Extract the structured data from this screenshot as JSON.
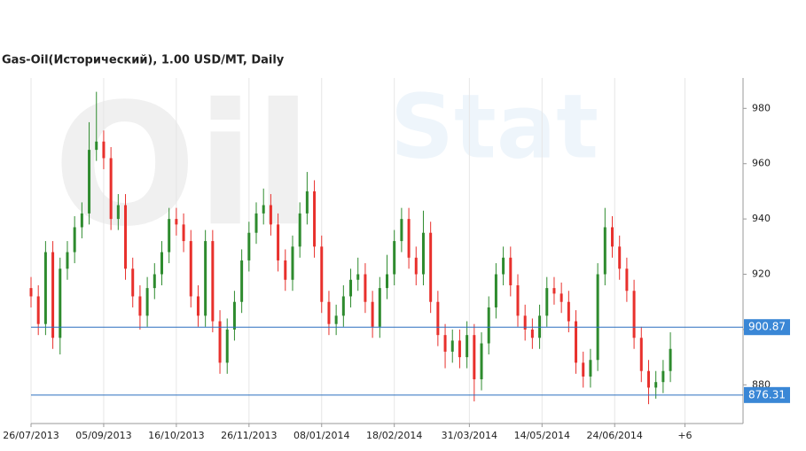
{
  "chart_data": {
    "type": "candlestick",
    "title": "Gas-Oil(Исторический), 1.00 USD/MT, Daily",
    "watermark": [
      "Oil",
      "Stat"
    ],
    "x": [
      0,
      3,
      6,
      9,
      12,
      15,
      18,
      21,
      24,
      27,
      30,
      33,
      36,
      39,
      42,
      45,
      48,
      51,
      54,
      57,
      60,
      63,
      66,
      69,
      72,
      75,
      78,
      81,
      84,
      87,
      90,
      93,
      96,
      99,
      102,
      105,
      108,
      111,
      114,
      117,
      120,
      123,
      126,
      129,
      132,
      135,
      138,
      141,
      144,
      147,
      150,
      153,
      156,
      159,
      162,
      165,
      168,
      171,
      174,
      177,
      180,
      183,
      186,
      189,
      192,
      195,
      198,
      201,
      204,
      207,
      210,
      213,
      216,
      219,
      222,
      225,
      228,
      231,
      234,
      237,
      240,
      243,
      246,
      249,
      252,
      255,
      258,
      261,
      264
    ],
    "open": [
      915,
      912,
      902,
      928,
      897,
      922,
      928,
      937,
      942,
      965,
      968,
      962,
      940,
      945,
      922,
      912,
      905,
      915,
      920,
      928,
      940,
      938,
      932,
      912,
      905,
      932,
      903,
      888,
      900,
      910,
      925,
      935,
      942,
      945,
      938,
      925,
      918,
      930,
      942,
      950,
      930,
      910,
      902,
      905,
      912,
      918,
      920,
      910,
      901,
      915,
      920,
      932,
      940,
      926,
      920,
      935,
      910,
      898,
      892,
      896,
      890,
      898,
      882,
      895,
      908,
      920,
      926,
      916,
      905,
      900,
      897,
      905,
      915,
      913,
      910,
      903,
      888,
      883,
      889,
      920,
      937,
      930,
      922,
      914,
      897,
      885,
      879,
      881,
      885
    ],
    "high": [
      919,
      916,
      932,
      932,
      926,
      932,
      941,
      946,
      975,
      986,
      972,
      966,
      949,
      949,
      926,
      916,
      919,
      924,
      932,
      944,
      944,
      942,
      936,
      916,
      936,
      936,
      907,
      904,
      914,
      929,
      939,
      946,
      951,
      949,
      942,
      929,
      934,
      946,
      957,
      954,
      934,
      914,
      909,
      916,
      922,
      926,
      924,
      914,
      919,
      927,
      936,
      944,
      944,
      930,
      943,
      939,
      914,
      902,
      900,
      900,
      903,
      902,
      899,
      912,
      924,
      930,
      930,
      920,
      909,
      904,
      909,
      919,
      919,
      917,
      914,
      907,
      892,
      893,
      924,
      944,
      941,
      934,
      926,
      918,
      901,
      889,
      885,
      889,
      899
    ],
    "low": [
      908,
      898,
      898,
      893,
      891,
      918,
      924,
      933,
      938,
      961,
      958,
      936,
      936,
      918,
      908,
      900,
      901,
      911,
      916,
      924,
      934,
      928,
      908,
      901,
      901,
      899,
      884,
      884,
      896,
      906,
      921,
      931,
      938,
      934,
      921,
      914,
      914,
      926,
      938,
      926,
      906,
      898,
      898,
      901,
      908,
      914,
      906,
      897,
      897,
      911,
      916,
      928,
      922,
      916,
      916,
      906,
      894,
      886,
      888,
      886,
      886,
      874,
      878,
      891,
      904,
      916,
      912,
      901,
      896,
      893,
      893,
      901,
      909,
      906,
      899,
      884,
      879,
      879,
      885,
      916,
      926,
      918,
      910,
      893,
      881,
      873,
      875,
      877,
      881
    ],
    "close": [
      912,
      902,
      928,
      897,
      922,
      928,
      937,
      942,
      965,
      968,
      962,
      940,
      945,
      922,
      912,
      905,
      915,
      920,
      928,
      940,
      938,
      932,
      912,
      905,
      932,
      903,
      888,
      900,
      910,
      925,
      935,
      942,
      945,
      938,
      925,
      918,
      930,
      942,
      950,
      930,
      910,
      902,
      905,
      912,
      918,
      920,
      910,
      901,
      915,
      920,
      932,
      940,
      926,
      920,
      935,
      910,
      898,
      892,
      896,
      890,
      898,
      882,
      895,
      908,
      920,
      926,
      916,
      905,
      900,
      897,
      905,
      915,
      913,
      910,
      903,
      888,
      883,
      889,
      920,
      937,
      930,
      922,
      914,
      897,
      885,
      879,
      881,
      885,
      893
    ],
    "up_color": "#2e8b2e",
    "down_color": "#e8302c",
    "xlim": [
      0,
      294
    ],
    "xticks": [
      {
        "value": 0,
        "label": "26/07/2013"
      },
      {
        "value": 30,
        "label": "05/09/2013"
      },
      {
        "value": 60,
        "label": "16/10/2013"
      },
      {
        "value": 90,
        "label": "26/11/2013"
      },
      {
        "value": 120,
        "label": "08/01/2014"
      },
      {
        "value": 150,
        "label": "18/02/2014"
      },
      {
        "value": 181,
        "label": "31/03/2014"
      },
      {
        "value": 211,
        "label": "14/05/2014"
      },
      {
        "value": 241,
        "label": "24/06/2014"
      },
      {
        "value": 270,
        "label": "+6"
      }
    ],
    "ylim": [
      866,
      991
    ],
    "yticks": [
      880,
      900,
      920,
      940,
      960,
      980
    ],
    "hlines": [
      900.87,
      876.31
    ],
    "hline_color": "#2a6fbf",
    "grid": true
  }
}
